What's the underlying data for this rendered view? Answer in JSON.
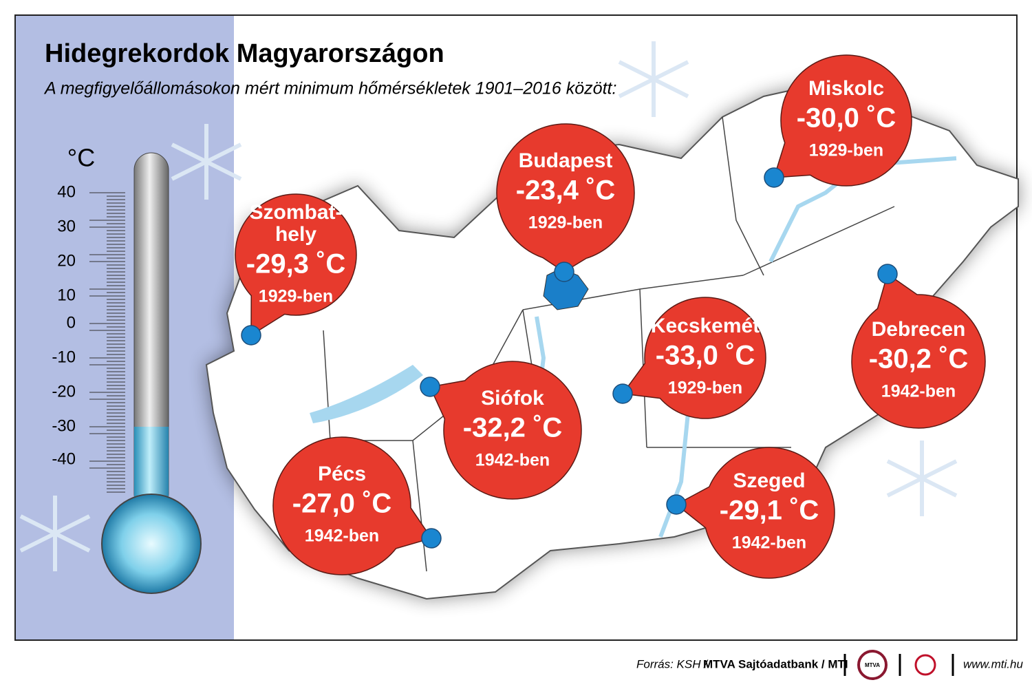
{
  "header": {
    "title": "Hidegrekordok Magyarországon",
    "subtitle": "A megfigyelőállomásokon mért minimum hőmérsékletek 1901–2016 között:"
  },
  "thermometer": {
    "unit": "°C",
    "scale": [
      40,
      30,
      20,
      10,
      0,
      -10,
      -20,
      -30,
      -40
    ]
  },
  "cities": [
    {
      "name": [
        "Szombat-",
        "hely"
      ],
      "temperature": "-29,3 ˚C",
      "year": "1929-ben"
    },
    {
      "name": [
        "Budapest"
      ],
      "temperature": "-23,4 ˚C",
      "year": "1929-ben"
    },
    {
      "name": [
        "Miskolc"
      ],
      "temperature": "-30,0 ˚C",
      "year": "1929-ben"
    },
    {
      "name": [
        "Kecskemét"
      ],
      "temperature": "-33,0 ˚C",
      "year": "1929-ben"
    },
    {
      "name": [
        "Debrecen"
      ],
      "temperature": "-30,2 ˚C",
      "year": "1942-ben"
    },
    {
      "name": [
        "Siófok"
      ],
      "temperature": "-32,2 ˚C",
      "year": "1942-ben"
    },
    {
      "name": [
        "Pécs"
      ],
      "temperature": "-27,0 ˚C",
      "year": "1942-ben"
    },
    {
      "name": [
        "Szeged"
      ],
      "temperature": "-29,1 ˚C",
      "year": "1942-ben"
    }
  ],
  "footer": {
    "source_prefix": "Forrás: KSH /",
    "source_main": "MTVA Sajtóadatbank / MTI",
    "logo": "MTVA",
    "url": "www.mti.hu"
  }
}
